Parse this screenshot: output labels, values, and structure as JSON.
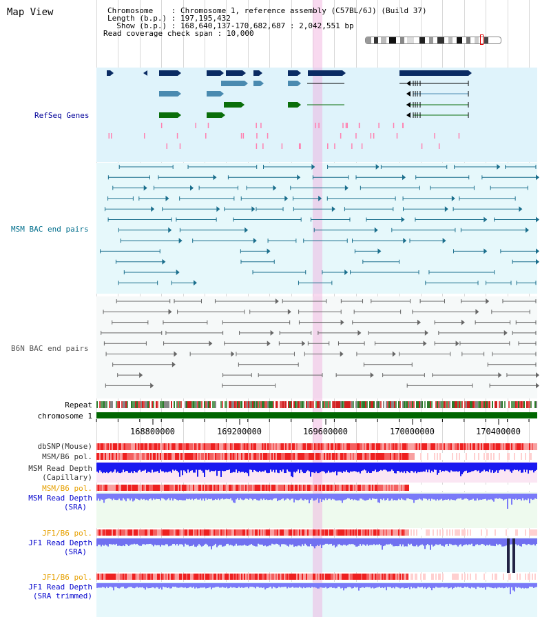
{
  "app": {
    "title": "Map View"
  },
  "header": {
    "rows": [
      {
        "key": "Chromosome    ",
        "value": "Chromosome 1, reference assembly (C57BL/6J) (Build 37)"
      },
      {
        "key": "Length (b.p.) ",
        "value": "197,195,432"
      },
      {
        "key": "  Show (b.p.) ",
        "value": "168,640,137-170,682,687 : 2,042,551 bp"
      },
      {
        "key": "Read coverage check span ",
        "value": "10,000"
      }
    ]
  },
  "tracks": {
    "refseq": {
      "label": "RefSeq Genes",
      "color": "#000099"
    },
    "msm_bac": {
      "label": "MSM BAC end pairs",
      "color": "#006e8c"
    },
    "b6n_bac": {
      "label": "B6N BAC end pairs",
      "color": "#555555"
    },
    "repeat": {
      "label": "Repeat"
    },
    "chromosome": {
      "label": "chromosome 1"
    },
    "dbsnp": {
      "label": "dbSNP(Mouse)"
    },
    "msm_b6_pol": {
      "label": "MSM/B6 pol."
    },
    "msm_depth_cap": {
      "line1": "MSM Read Depth",
      "line2": "(Capillary)"
    },
    "msm_b6_pol2": {
      "label": "MSM/B6 pol.",
      "color": "#e6a000"
    },
    "msm_depth_sra": {
      "line1": "MSM Read Depth",
      "line2": "(SRA)",
      "color": "#0000cc"
    },
    "jf1_b6_pol": {
      "label": "JF1/B6 pol.",
      "color": "#e6a000"
    },
    "jf1_depth_sra": {
      "line1": "JF1 Read Depth",
      "line2": "(SRA)",
      "color": "#0000cc"
    },
    "jf1_b6_pol2": {
      "label": "JF1/B6 pol.",
      "color": "#e6a000"
    },
    "jf1_depth_trim": {
      "line1": "JF1 Read Depth",
      "line2": "(SRA trimmed)",
      "color": "#0000cc"
    }
  },
  "axis": {
    "ticks": [
      "168800000",
      "169200000",
      "169600000",
      "170000000",
      "170400000"
    ]
  },
  "colors": {
    "refseq_bg": "#dff3fb",
    "msm_bg": "#e6f8fb",
    "b6n_bg": "#f4f8f8",
    "highlight": "#f8d8f0",
    "chrom_bar": "#006600"
  }
}
